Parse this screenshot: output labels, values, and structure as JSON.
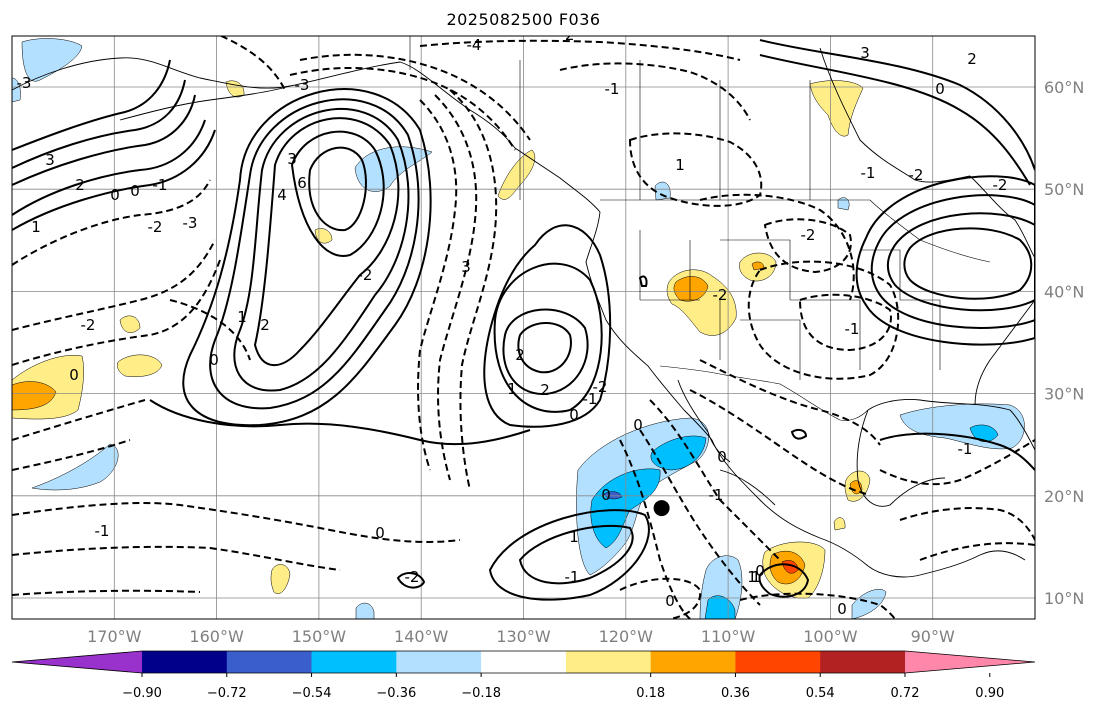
{
  "title": "2025082500 F036",
  "colors": {
    "background": "#ffffff",
    "gridline": "#888888",
    "tick_label": "#808080",
    "contour": "#000000",
    "shade_light_blue": "#b3e0ff",
    "shade_mid_blue": "#00bfff",
    "shade_blue": "#3a5fcd",
    "shade_purple": "#9932cc",
    "shade_yellow": "#ffee88",
    "shade_orange": "#ffa500",
    "shade_red_orange": "#ff4500",
    "marker": "#000000"
  },
  "lat_labels": [
    "60°N",
    "50°N",
    "40°N",
    "30°N",
    "20°N",
    "10°N"
  ],
  "lon_labels": [
    "170°W",
    "160°W",
    "150°W",
    "140°W",
    "130°W",
    "120°W",
    "110°W",
    "100°W",
    "90°W"
  ],
  "colorbar": {
    "ticks": [
      "−0.90",
      "−0.72",
      "−0.54",
      "−0.36",
      "−0.18",
      "0.18",
      "0.36",
      "0.54",
      "0.72",
      "0.90"
    ],
    "colors": [
      "#9932cc",
      "#00008b",
      "#3a5fcd",
      "#00bfff",
      "#b3e0ff",
      "#ffffff",
      "#ffee88",
      "#ffa500",
      "#ff4500",
      "#b22222",
      "#ff88aa"
    ]
  },
  "contour_labels": [
    "3",
    "2",
    "1",
    "0",
    "0",
    "-1",
    "-2",
    "-3",
    "6",
    "4",
    "3",
    "2",
    "1",
    "0",
    "-3",
    "-2",
    "-1",
    "0",
    "-2",
    "0",
    "3",
    "2",
    "1",
    "0",
    "-1",
    "-2",
    "-3",
    "2",
    "1",
    "-2",
    "-1",
    "-2",
    "-1",
    "1",
    "0",
    "0",
    "3",
    "2",
    "-4",
    "-2",
    "0",
    "1",
    "-2",
    "-1",
    "-1",
    "-2",
    "-1",
    "-1",
    "0",
    "0",
    "1",
    "0",
    "0",
    "-2"
  ],
  "marker": {
    "lon": -116.5,
    "lat": 18.8
  }
}
